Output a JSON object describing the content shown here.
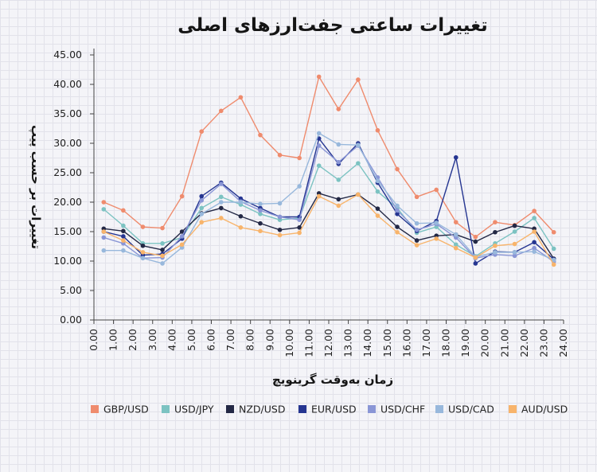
{
  "chart_data": {
    "type": "line",
    "title": "تغییرات ساعتی جفت‌ارزهای اصلی",
    "xlabel": "زمان به‌وقت گرینویچ",
    "ylabel": "تغییرات بر حسب پیپ",
    "xlim": [
      0,
      24
    ],
    "ylim": [
      0,
      45
    ],
    "x_ticks": [
      "0.00",
      "1.00",
      "2.00",
      "3.00",
      "4.00",
      "5.00",
      "6.00",
      "7.00",
      "8.00",
      "9.00",
      "10.00",
      "11.00",
      "12.00",
      "13.00",
      "14.00",
      "15.00",
      "16.00",
      "17.00",
      "18.00",
      "19.00",
      "20.00",
      "21.00",
      "22.00",
      "23.00",
      "24.00"
    ],
    "y_ticks": [
      "0.00",
      "5.00",
      "10.00",
      "15.00",
      "20.00",
      "25.00",
      "30.00",
      "35.00",
      "40.00",
      "45.00"
    ],
    "grid": false,
    "legend_position": "bottom",
    "x": [
      0.5,
      1.5,
      2.5,
      3.5,
      4.5,
      5.5,
      6.5,
      7.5,
      8.5,
      9.5,
      10.5,
      11.5,
      12.5,
      13.5,
      14.5,
      15.5,
      16.5,
      17.5,
      18.5,
      19.5,
      20.5,
      21.5,
      22.5,
      23.5
    ],
    "series": [
      {
        "name": "GBP/USD",
        "color": "#ef8b6d",
        "values": [
          20.0,
          18.6,
          15.8,
          15.6,
          21.0,
          32.0,
          35.5,
          37.8,
          31.4,
          28.0,
          27.5,
          41.3,
          35.8,
          40.8,
          32.2,
          25.6,
          20.9,
          22.1,
          16.6,
          14.1,
          16.6,
          16.1,
          18.5,
          14.9
        ]
      },
      {
        "name": "USD/JPY",
        "color": "#7cc3c2",
        "values": [
          18.8,
          16.0,
          13.0,
          13.0,
          14.0,
          19.0,
          20.9,
          19.6,
          18.0,
          17.0,
          17.3,
          26.2,
          23.8,
          26.6,
          21.8,
          19.0,
          14.8,
          15.8,
          12.8,
          10.8,
          13.0,
          15.0,
          17.3,
          12.1
        ]
      },
      {
        "name": "NZD/USD",
        "color": "#232845",
        "values": [
          15.5,
          15.1,
          12.6,
          11.9,
          15.0,
          18.1,
          19.0,
          17.6,
          16.4,
          15.3,
          15.7,
          21.5,
          20.5,
          21.3,
          18.9,
          15.8,
          13.5,
          14.3,
          14.5,
          13.3,
          14.9,
          16.0,
          15.5,
          10.4
        ]
      },
      {
        "name": "EUR/USD",
        "color": "#253591",
        "values": [
          15.0,
          14.2,
          11.0,
          11.2,
          13.8,
          21.0,
          23.3,
          20.6,
          19.0,
          17.5,
          17.5,
          30.8,
          26.5,
          30.0,
          23.3,
          18.0,
          15.1,
          16.8,
          27.6,
          9.6,
          11.6,
          11.5,
          13.2,
          10.3
        ]
      },
      {
        "name": "USD/CHF",
        "color": "#8a96d6",
        "values": [
          14.0,
          13.0,
          10.5,
          10.6,
          14.2,
          20.3,
          23.1,
          20.1,
          18.6,
          17.5,
          17.0,
          29.6,
          26.8,
          29.6,
          24.2,
          18.6,
          15.3,
          16.3,
          14.0,
          10.5,
          11.1,
          10.9,
          12.2,
          9.9
        ]
      },
      {
        "name": "USD/CAD",
        "color": "#98b8dc",
        "values": [
          11.8,
          11.8,
          10.5,
          9.6,
          12.3,
          18.0,
          20.0,
          20.0,
          19.7,
          19.8,
          22.7,
          31.7,
          29.8,
          29.7,
          23.6,
          19.4,
          16.4,
          16.5,
          14.5,
          10.7,
          11.5,
          11.5,
          11.6,
          10.2
        ]
      },
      {
        "name": "AUD/USD",
        "color": "#f8b46b",
        "values": [
          15.0,
          13.5,
          11.5,
          10.9,
          12.8,
          16.6,
          17.3,
          15.7,
          15.1,
          14.4,
          14.8,
          21.0,
          19.4,
          21.3,
          17.7,
          14.9,
          12.7,
          13.8,
          12.2,
          10.6,
          12.6,
          12.9,
          15.0,
          9.4
        ]
      }
    ]
  }
}
